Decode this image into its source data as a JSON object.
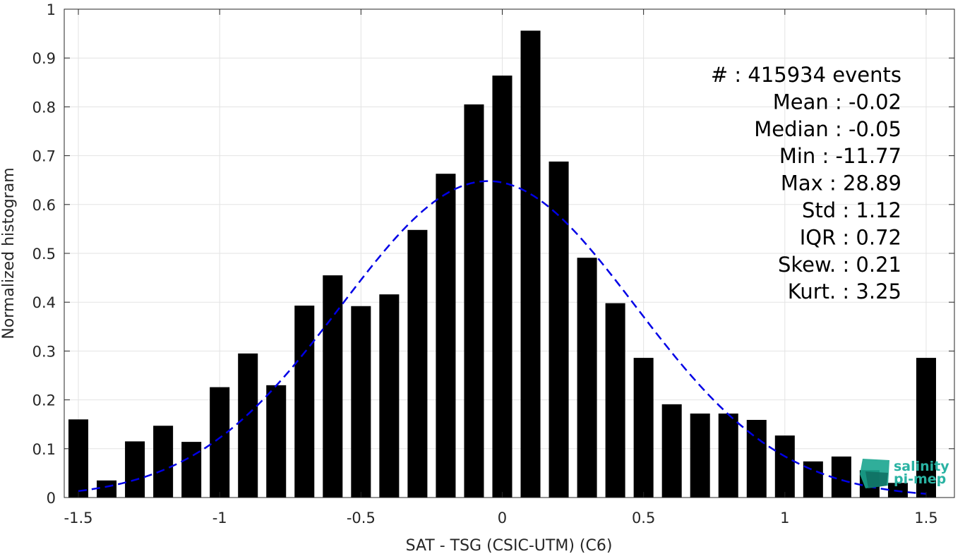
{
  "chart_data": {
    "type": "bar",
    "xlabel": "SAT - TSG (CSIC-UTM) (C6)",
    "ylabel": "Normalized histogram",
    "xlim": [
      -1.55,
      1.6
    ],
    "ylim": [
      0,
      1
    ],
    "xticks": [
      -1.5,
      -1,
      -0.5,
      0,
      0.5,
      1,
      1.5
    ],
    "xtick_labels": [
      "-1.5",
      "-1",
      "-0.5",
      "0",
      "0.5",
      "1",
      "1.5"
    ],
    "yticks": [
      0,
      0.1,
      0.2,
      0.3,
      0.4,
      0.5,
      0.6,
      0.7,
      0.8,
      0.9,
      1
    ],
    "ytick_labels": [
      "0",
      "0.1",
      "0.2",
      "0.3",
      "0.4",
      "0.5",
      "0.6",
      "0.7",
      "0.8",
      "0.9",
      "1"
    ],
    "grid": true,
    "bar_color": "#000000",
    "fit_color": "#0000e6",
    "x": [
      -1.5,
      -1.4,
      -1.3,
      -1.2,
      -1.1,
      -1.0,
      -0.9,
      -0.8,
      -0.7,
      -0.6,
      -0.5,
      -0.4,
      -0.3,
      -0.2,
      -0.1,
      0.0,
      0.1,
      0.2,
      0.3,
      0.4,
      0.5,
      0.6,
      0.7,
      0.8,
      0.9,
      1.0,
      1.1,
      1.2,
      1.3,
      1.4,
      1.5
    ],
    "values": [
      0.16,
      0.035,
      0.115,
      0.147,
      0.114,
      0.226,
      0.295,
      0.23,
      0.393,
      0.455,
      0.392,
      0.416,
      0.548,
      0.663,
      0.805,
      0.864,
      0.956,
      0.688,
      0.491,
      0.398,
      0.286,
      0.191,
      0.172,
      0.172,
      0.159,
      0.127,
      0.074,
      0.084,
      0.056,
      0.03,
      0.286
    ],
    "gaussian_fit": {
      "mean": -0.05,
      "sigma": 0.52,
      "peak": 0.648,
      "x_range": [
        -1.5,
        1.5
      ],
      "style": "dashed"
    },
    "stats": [
      "#  : 415934 events",
      "Mean : -0.02",
      "Median : -0.05",
      "Min : -11.77",
      "Max : 28.89",
      "Std : 1.12",
      "IQR : 0.72",
      "Skew. : 0.21",
      "Kurt. : 3.25"
    ]
  },
  "logo": {
    "line1": "salinity",
    "line2": "pi-mep"
  }
}
